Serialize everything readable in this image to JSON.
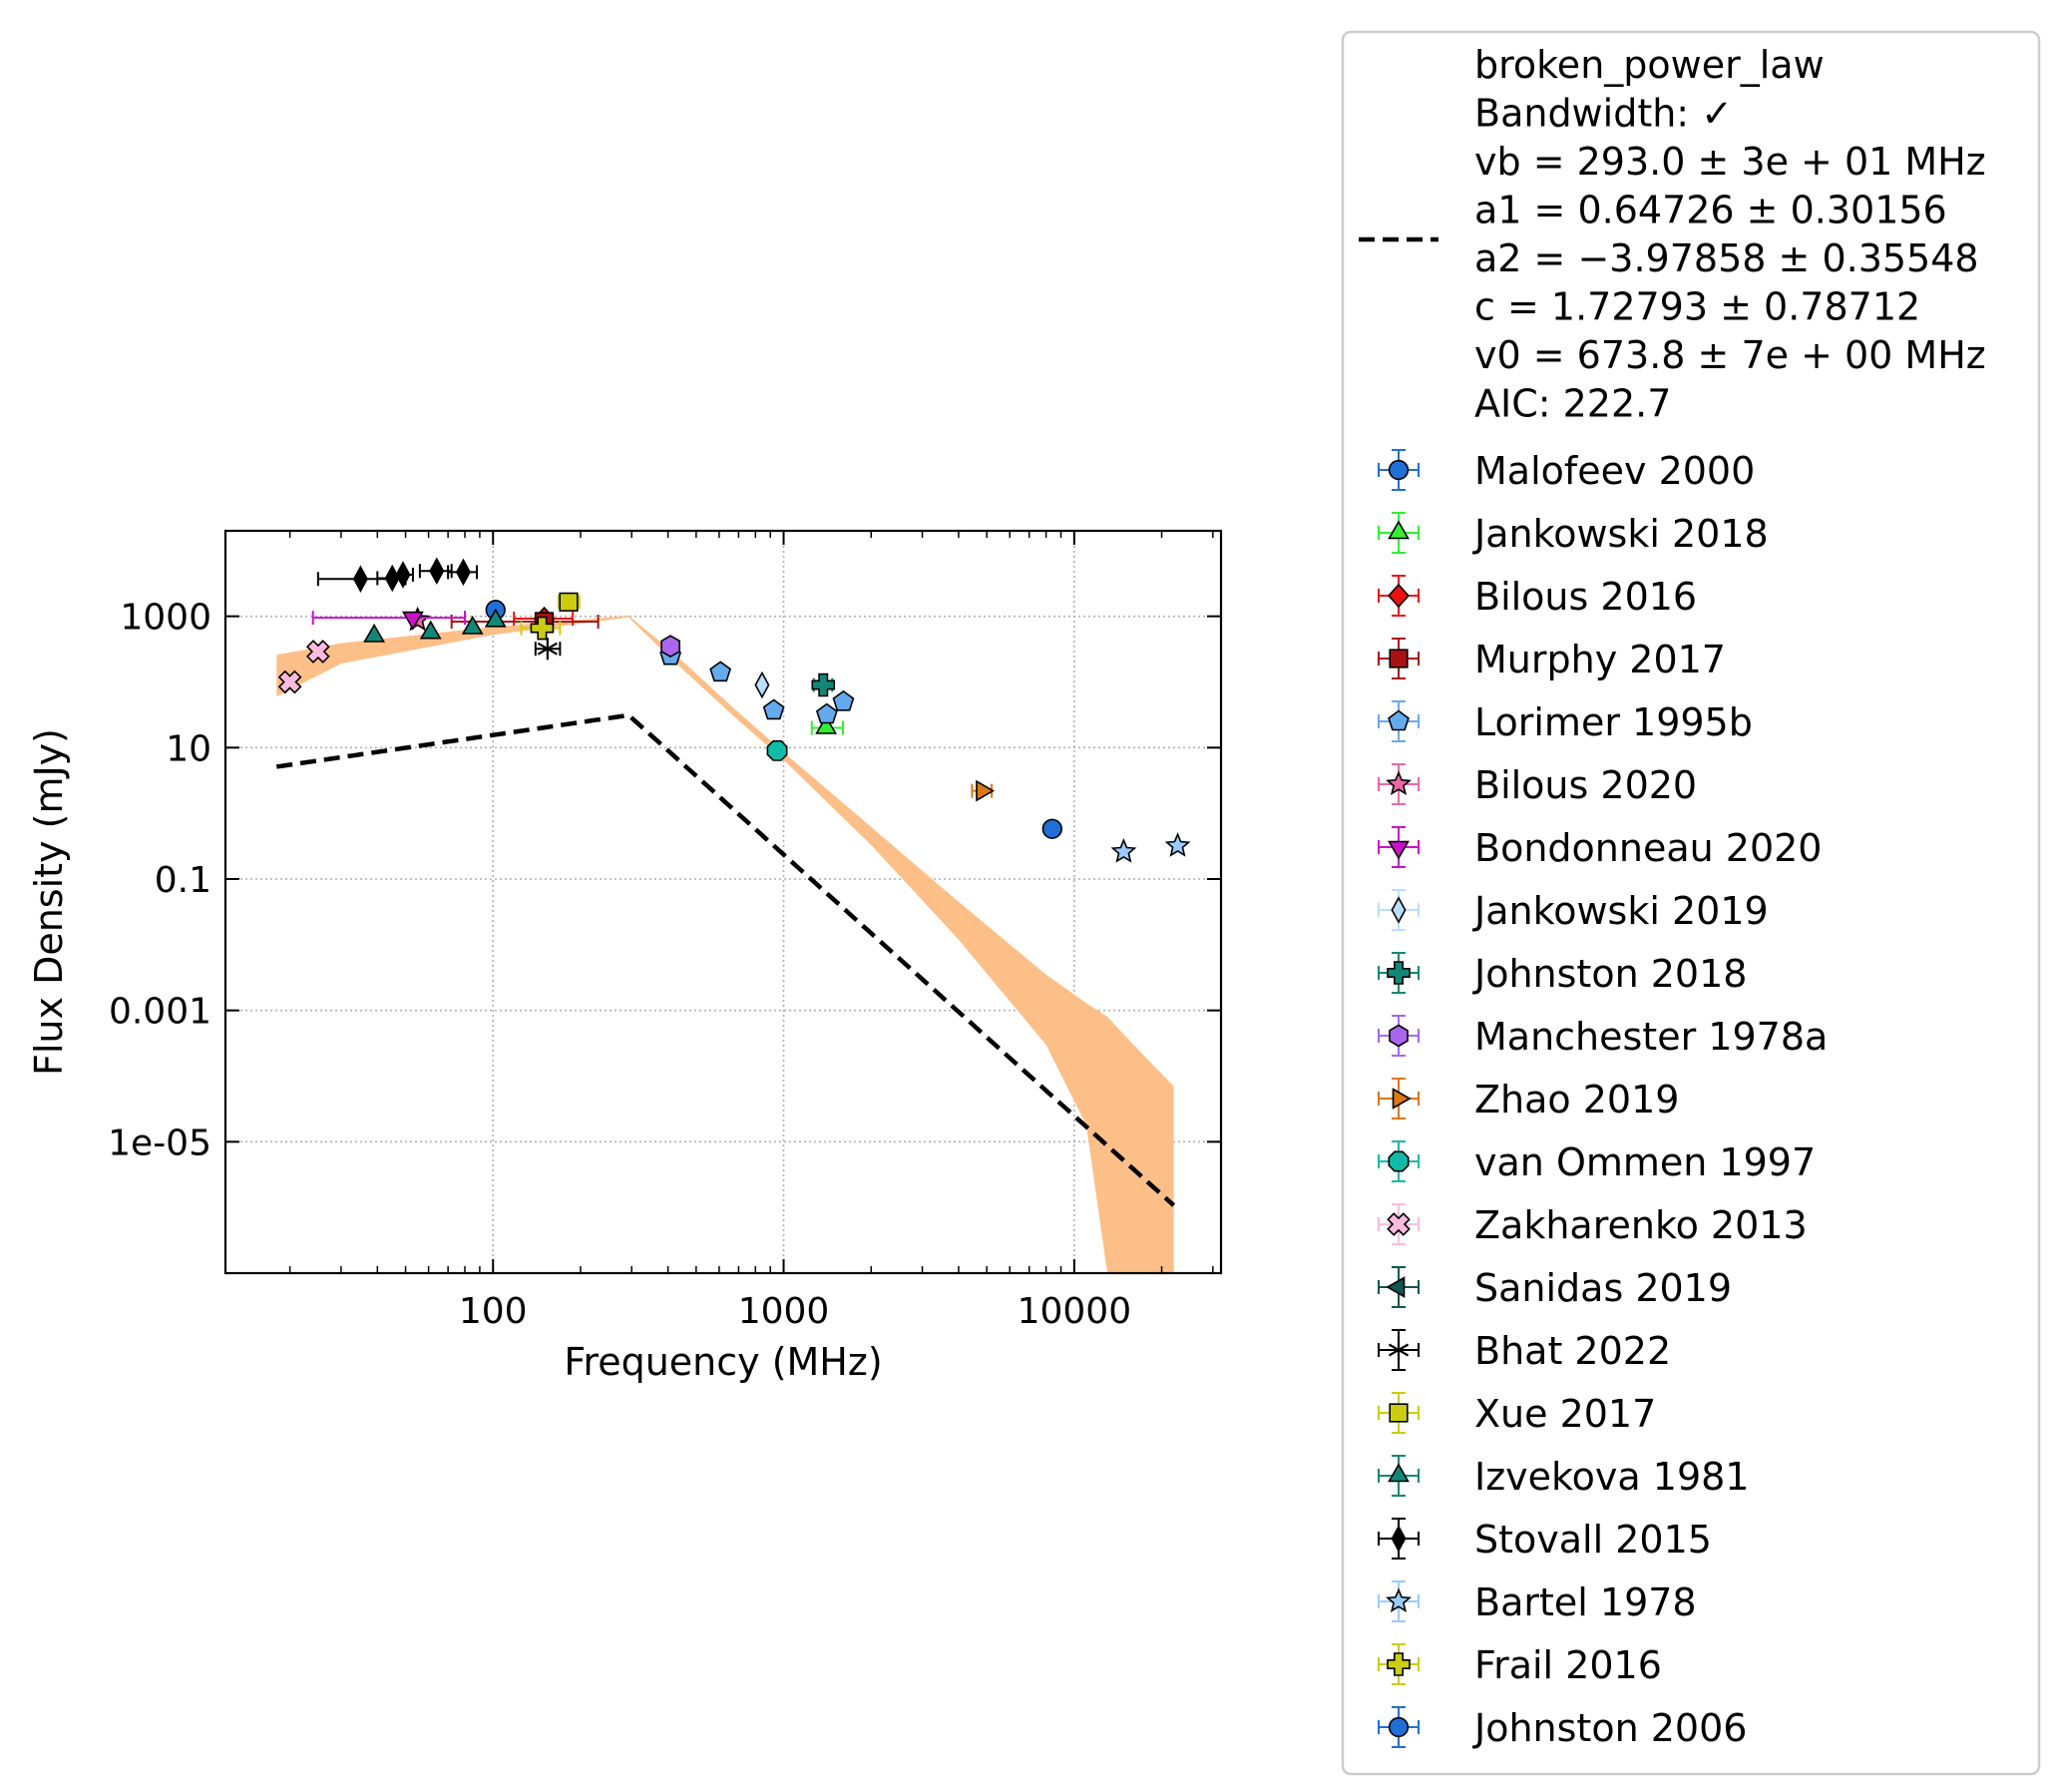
{
  "chart_data": {
    "type": "scatter",
    "xlabel": "Frequency (MHz)",
    "ylabel": "Flux Density (mJy)",
    "x_scale": "log",
    "y_scale": "log",
    "xlim": [
      12,
      32000
    ],
    "ylim": [
      1e-07,
      20000
    ],
    "x_ticks": [
      {
        "v": 100,
        "label": "100"
      },
      {
        "v": 1000,
        "label": "1000"
      },
      {
        "v": 10000,
        "label": "10000"
      }
    ],
    "y_ticks": [
      {
        "v": 1e-05,
        "label": "1e-05"
      },
      {
        "v": 0.001,
        "label": "0.001"
      },
      {
        "v": 0.1,
        "label": "0.1"
      },
      {
        "v": 10,
        "label": "10"
      },
      {
        "v": 1000,
        "label": "1000"
      }
    ],
    "grid": true,
    "legend_position": "outside-right",
    "fit": {
      "name": "broken_power_law",
      "lines": [
        "broken_power_law",
        "Bandwidth: ✓",
        "vb = 293.0 ± 3e + 01 MHz",
        "a1 = 0.64726 ± 0.30156",
        "a2 = −3.97858 ± 0.35548",
        "c = 1.72793 ± 0.78712",
        "v0 = 673.8 ± 7e + 00 MHz",
        "AIC: 222.7"
      ],
      "params": {
        "vb": 293.0,
        "a1": 0.64726,
        "a2": -3.97858,
        "c": 1.72793,
        "v0": 673.8
      },
      "x_range": [
        18,
        22000
      ],
      "line_color": "#000000",
      "band_color": "#fdbf88",
      "band": [
        {
          "x": 18,
          "lo": 60,
          "hi": 260
        },
        {
          "x": 30,
          "lo": 190,
          "hi": 390
        },
        {
          "x": 100,
          "lo": 520,
          "hi": 690
        },
        {
          "x": 293,
          "lo": 960,
          "hi": 1020
        },
        {
          "x": 400,
          "lo": 250,
          "hi": 330
        },
        {
          "x": 673.8,
          "lo": 30,
          "hi": 40
        },
        {
          "x": 1000,
          "lo": 6.5,
          "hi": 8.5
        },
        {
          "x": 2000,
          "lo": 0.33,
          "hi": 0.62
        },
        {
          "x": 4000,
          "lo": 0.012,
          "hi": 0.045
        },
        {
          "x": 8000,
          "lo": 0.0003,
          "hi": 0.0035
        },
        {
          "x": 11000,
          "lo": 1.8e-05,
          "hi": 0.0013
        },
        {
          "x": 13000,
          "lo": 1e-07,
          "hi": 0.0008
        },
        {
          "x": 16000,
          "lo": 1e-07,
          "hi": 0.0003
        },
        {
          "x": 22000,
          "lo": 1e-07,
          "hi": 7e-05
        }
      ]
    },
    "series": [
      {
        "name": "Malofeev 2000",
        "marker": "circle",
        "color": "#1f6fd6",
        "points": [
          {
            "x": 102,
            "y": 1250
          }
        ]
      },
      {
        "name": "Jankowski 2018",
        "marker": "triangle-up",
        "color": "#33ee33",
        "points": [
          {
            "x": 1400,
            "y": 20,
            "xerr": [
              1250,
              1600
            ]
          }
        ]
      },
      {
        "name": "Bilous 2016",
        "marker": "diamond",
        "color": "#ee1111",
        "points": [
          {
            "x": 150,
            "y": 920,
            "xerr": [
              118,
              188
            ]
          }
        ]
      },
      {
        "name": "Murphy 2017",
        "marker": "square",
        "color": "#aa1111",
        "points": [
          {
            "x": 150,
            "y": 830,
            "xerr": [
              72,
              230
            ]
          }
        ]
      },
      {
        "name": "Lorimer 1995b",
        "marker": "pentagon",
        "color": "#66aaee",
        "points": [
          {
            "x": 408,
            "y": 250
          },
          {
            "x": 606,
            "y": 140
          },
          {
            "x": 925,
            "y": 37
          },
          {
            "x": 1408,
            "y": 32
          },
          {
            "x": 1606,
            "y": 50
          }
        ]
      },
      {
        "name": "Bilous 2020",
        "marker": "star",
        "color": "#ee66aa",
        "points": [
          {
            "x": 55,
            "y": 880
          }
        ]
      },
      {
        "name": "Bondonneau 2020",
        "marker": "triangle-down",
        "color": "#cc11cc",
        "points": [
          {
            "x": 53,
            "y": 950,
            "xerr": [
              24,
              80
            ]
          }
        ]
      },
      {
        "name": "Jankowski 2019",
        "marker": "thin-diamond",
        "color": "#bbddff",
        "points": [
          {
            "x": 843,
            "y": 90
          }
        ]
      },
      {
        "name": "Johnston 2018",
        "marker": "plus-filled",
        "color": "#118877",
        "points": [
          {
            "x": 1369,
            "y": 90,
            "xerr": [
              1270,
              1470
            ]
          }
        ]
      },
      {
        "name": "Manchester 1978a",
        "marker": "hexagon",
        "color": "#aa66ee",
        "points": [
          {
            "x": 408,
            "y": 350
          }
        ]
      },
      {
        "name": "Zhao 2019",
        "marker": "triangle-right",
        "color": "#dd7711",
        "points": [
          {
            "x": 4820,
            "y": 2.2,
            "xerr": [
              4450,
              5200
            ]
          }
        ]
      },
      {
        "name": "van Ommen 1997",
        "marker": "octagon",
        "color": "#11bbaa",
        "points": [
          {
            "x": 950,
            "y": 9
          }
        ]
      },
      {
        "name": "Zakharenko 2013",
        "marker": "x-filled",
        "color": "#ffbbdd",
        "points": [
          {
            "x": 20,
            "y": 100
          },
          {
            "x": 25,
            "y": 290
          }
        ]
      },
      {
        "name": "Sanidas 2019",
        "marker": "triangle-left",
        "color": "#115555",
        "points": []
      },
      {
        "name": "Bhat 2022",
        "marker": "asterisk",
        "color": "#000000",
        "points": [
          {
            "x": 154,
            "y": 320,
            "xerr": [
              140,
              170
            ]
          }
        ]
      },
      {
        "name": "Xue 2017",
        "marker": "square",
        "color": "#cccc11",
        "points": [
          {
            "x": 182,
            "y": 1650,
            "xerr": [
              168,
              198
            ]
          }
        ]
      },
      {
        "name": "Izvekova 1981",
        "marker": "triangle-up",
        "color": "#118877",
        "points": [
          {
            "x": 39,
            "y": 500
          },
          {
            "x": 61,
            "y": 560
          },
          {
            "x": 85,
            "y": 660
          },
          {
            "x": 102,
            "y": 850
          }
        ]
      },
      {
        "name": "Stovall 2015",
        "marker": "thin-diamond",
        "color": "#000000",
        "points": [
          {
            "x": 35,
            "y": 3700,
            "xerr": [
              25,
              45
            ]
          },
          {
            "x": 45,
            "y": 3800,
            "xerr": [
              40,
              50
            ]
          },
          {
            "x": 49,
            "y": 4300,
            "xerr": [
              45,
              53
            ]
          },
          {
            "x": 64,
            "y": 4900,
            "xerr": [
              56,
              72
            ]
          },
          {
            "x": 79,
            "y": 4700,
            "xerr": [
              70,
              88
            ]
          }
        ]
      },
      {
        "name": "Bartel 1978",
        "marker": "star",
        "color": "#99ccff",
        "points": [
          {
            "x": 14800,
            "y": 0.26
          },
          {
            "x": 22700,
            "y": 0.32
          }
        ]
      },
      {
        "name": "Frail 2016",
        "marker": "plus-filled",
        "color": "#cccc11",
        "points": [
          {
            "x": 147.5,
            "y": 660,
            "xerr": [
              125,
              170
            ]
          }
        ]
      },
      {
        "name": "Johnston 2006",
        "marker": "circle",
        "color": "#1f6fd6",
        "points": [
          {
            "x": 8400,
            "y": 0.58
          }
        ]
      }
    ]
  }
}
